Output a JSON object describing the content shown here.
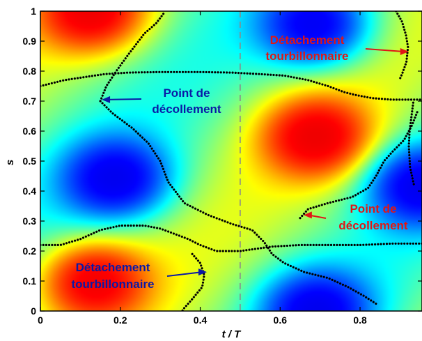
{
  "chart_data": {
    "type": "heatmap",
    "title": "",
    "xlabel": "t / T",
    "ylabel": "s",
    "xlim": [
      0,
      0.955
    ],
    "ylim": [
      0,
      1
    ],
    "x_ticks": [
      "0",
      "0.2",
      "0.4",
      "0.6",
      "0.8"
    ],
    "y_ticks": [
      "0",
      "0.1",
      "0.2",
      "0.3",
      "0.4",
      "0.5",
      "0.6",
      "0.7",
      "0.8",
      "0.9",
      "1"
    ],
    "x_tick_values": [
      0,
      0.2,
      0.4,
      0.6,
      0.8
    ],
    "y_tick_values": [
      0,
      0.1,
      0.2,
      0.3,
      0.4,
      0.5,
      0.6,
      0.7,
      0.8,
      0.9,
      1
    ],
    "colormap": "jet",
    "colormap_colors": [
      "#00007f",
      "#0000ff",
      "#00ffff",
      "#ffff00",
      "#ff0000",
      "#7f0000"
    ],
    "field_extrema": [
      {
        "t": 0.13,
        "s": 0.1,
        "sign": "max"
      },
      {
        "t": 0.13,
        "s": 1.0,
        "sign": "max"
      },
      {
        "t": 0.69,
        "s": 0.58,
        "sign": "max"
      },
      {
        "t": 0.19,
        "s": 0.44,
        "sign": "min"
      },
      {
        "t": 0.69,
        "s": 0.95,
        "sign": "min"
      },
      {
        "t": 0.69,
        "s": 0.0,
        "sign": "min"
      },
      {
        "t": 0.95,
        "s": 0.42,
        "sign": "min"
      }
    ],
    "reference_line": {
      "t": 0.5,
      "style": "dashed",
      "color": "#8a8a8a"
    },
    "zero_contour_color": "#000000",
    "zero_contours": [
      {
        "name": "upper",
        "points": [
          [
            0,
            0.75
          ],
          [
            0.06,
            0.77
          ],
          [
            0.11,
            0.78
          ],
          [
            0.16,
            0.79
          ],
          [
            0.22,
            0.795
          ],
          [
            0.3,
            0.797
          ],
          [
            0.4,
            0.797
          ],
          [
            0.48,
            0.795
          ],
          [
            0.55,
            0.79
          ],
          [
            0.61,
            0.785
          ],
          [
            0.67,
            0.77
          ],
          [
            0.72,
            0.75
          ],
          [
            0.76,
            0.73
          ],
          [
            0.79,
            0.72
          ],
          [
            0.83,
            0.71
          ],
          [
            0.88,
            0.705
          ],
          [
            0.955,
            0.705
          ]
        ]
      },
      {
        "name": "top-left",
        "points": [
          [
            0.15,
            0.7
          ],
          [
            0.165,
            0.75
          ],
          [
            0.19,
            0.8
          ],
          [
            0.22,
            0.855
          ],
          [
            0.26,
            0.925
          ],
          [
            0.29,
            0.96
          ],
          [
            0.31,
            0.995
          ]
        ]
      },
      {
        "name": "top-right",
        "points": [
          [
            0.89,
            1.0
          ],
          [
            0.905,
            0.965
          ],
          [
            0.915,
            0.92
          ],
          [
            0.92,
            0.88
          ],
          [
            0.916,
            0.83
          ],
          [
            0.905,
            0.79
          ],
          [
            0.9,
            0.775
          ]
        ]
      },
      {
        "name": "right-spur",
        "points": [
          [
            0.933,
            0.695
          ],
          [
            0.924,
            0.6
          ],
          [
            0.922,
            0.55
          ],
          [
            0.925,
            0.48
          ],
          [
            0.935,
            0.42
          ]
        ]
      },
      {
        "name": "middle-left",
        "points": [
          [
            0.15,
            0.7
          ],
          [
            0.18,
            0.66
          ],
          [
            0.23,
            0.61
          ],
          [
            0.27,
            0.56
          ],
          [
            0.3,
            0.5
          ],
          [
            0.32,
            0.43
          ],
          [
            0.36,
            0.36
          ],
          [
            0.42,
            0.32
          ],
          [
            0.48,
            0.29
          ],
          [
            0.53,
            0.27
          ],
          [
            0.56,
            0.23
          ],
          [
            0.58,
            0.19
          ],
          [
            0.61,
            0.16
          ],
          [
            0.66,
            0.13
          ],
          [
            0.72,
            0.11
          ],
          [
            0.77,
            0.08
          ],
          [
            0.81,
            0.05
          ],
          [
            0.845,
            0.02
          ]
        ]
      },
      {
        "name": "middle-right",
        "points": [
          [
            0.65,
            0.31
          ],
          [
            0.67,
            0.34
          ],
          [
            0.72,
            0.36
          ],
          [
            0.78,
            0.38
          ],
          [
            0.82,
            0.41
          ],
          [
            0.84,
            0.45
          ],
          [
            0.86,
            0.5
          ],
          [
            0.88,
            0.53
          ],
          [
            0.91,
            0.57
          ],
          [
            0.93,
            0.62
          ],
          [
            0.945,
            0.67
          ]
        ]
      },
      {
        "name": "lower",
        "points": [
          [
            0,
            0.22
          ],
          [
            0.05,
            0.22
          ],
          [
            0.1,
            0.24
          ],
          [
            0.15,
            0.27
          ],
          [
            0.2,
            0.285
          ],
          [
            0.26,
            0.285
          ],
          [
            0.3,
            0.275
          ],
          [
            0.33,
            0.26
          ],
          [
            0.37,
            0.24
          ],
          [
            0.4,
            0.22
          ],
          [
            0.44,
            0.2
          ],
          [
            0.5,
            0.2
          ],
          [
            0.58,
            0.215
          ],
          [
            0.65,
            0.22
          ],
          [
            0.72,
            0.22
          ],
          [
            0.8,
            0.22
          ],
          [
            0.88,
            0.225
          ],
          [
            0.955,
            0.225
          ]
        ]
      },
      {
        "name": "bottom-left",
        "points": [
          [
            0.38,
            0.19
          ],
          [
            0.4,
            0.16
          ],
          [
            0.41,
            0.12
          ],
          [
            0.405,
            0.08
          ],
          [
            0.38,
            0.04
          ],
          [
            0.36,
            0.01
          ],
          [
            0.355,
            0.0
          ]
        ]
      }
    ],
    "annotations": [
      {
        "lines": [
          "Point de",
          "décollement"
        ],
        "color": "#0a1aa6",
        "t": 0.15,
        "s": 0.705
      },
      {
        "lines": [
          "Détachement",
          "tourbillonnaire"
        ],
        "color": "#e01616",
        "t": 0.925,
        "s": 0.865
      },
      {
        "lines": [
          "Point de",
          "décollement"
        ],
        "color": "#e01616",
        "t": 0.655,
        "s": 0.32
      },
      {
        "lines": [
          "Détachement",
          "tourbillonnaire"
        ],
        "color": "#0a1aa6",
        "t": 0.42,
        "s": 0.13
      }
    ]
  }
}
